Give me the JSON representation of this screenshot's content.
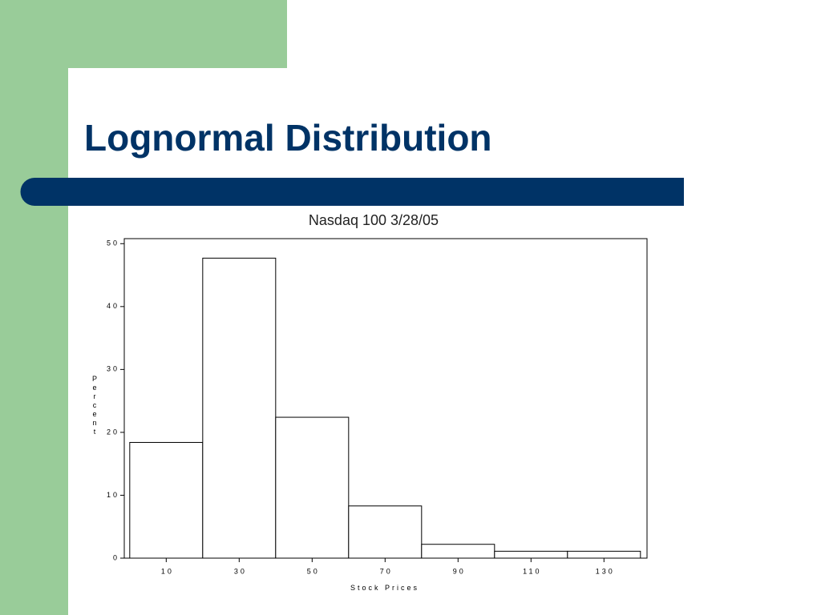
{
  "slide": {
    "title": "Lognormal Distribution"
  },
  "chart_data": {
    "type": "histogram",
    "title": "Nasdaq 100 3/28/05",
    "x_label": "Stock Prices",
    "y_label": "Percent",
    "bins": [
      0,
      20,
      40,
      60,
      80,
      100,
      120,
      140
    ],
    "values": [
      18.4,
      47.7,
      22.4,
      8.3,
      2.2,
      1.1,
      1.1
    ],
    "color": "#ffffff",
    "xlim": [
      -1.5,
      141.8
    ],
    "xticks": [
      10,
      30,
      50,
      70,
      90,
      110,
      130
    ],
    "ylim": [
      0,
      50.8
    ],
    "yticks": [
      0,
      10,
      20,
      30,
      40,
      50
    ],
    "grid": false
  }
}
